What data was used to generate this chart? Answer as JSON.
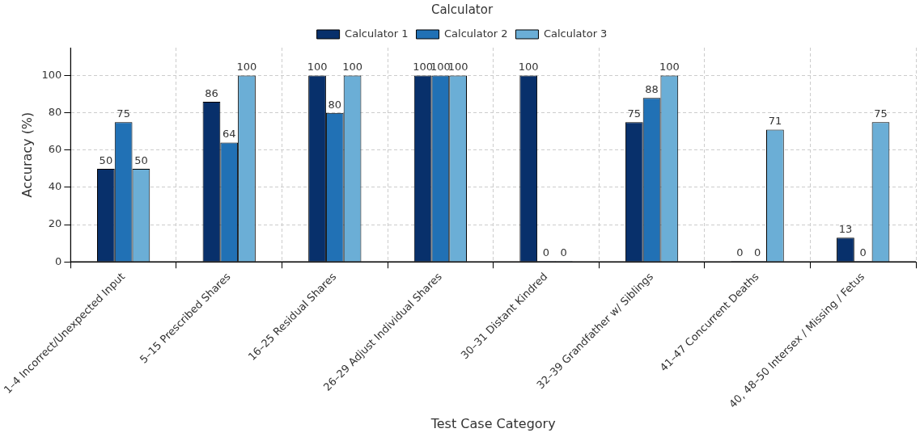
{
  "chart_data": {
    "type": "bar",
    "xlabel": "Test Case Category",
    "ylabel": "Accuracy (%)",
    "legend_title": "Calculator",
    "legend": "top",
    "categories": [
      "1–4 Incorrect/Unexpected Input",
      "5–15 Prescribed Shares",
      "16–25 Residual Shares",
      "26–29 Adjust Individual Shares",
      "30–31 Distant Kindred",
      "32–39 Grandfather w/ Siblings",
      "41–47 Concurrent Deaths",
      "40, 48–50 Intersex / Missing / Fetus"
    ],
    "series": [
      {
        "name": "Calculator 1",
        "color": "#08306b",
        "values": [
          50,
          86,
          100,
          100,
          100,
          75,
          0,
          13
        ]
      },
      {
        "name": "Calculator 2",
        "color": "#2171b5",
        "values": [
          75,
          64,
          80,
          100,
          0,
          88,
          0,
          0
        ]
      },
      {
        "name": "Calculator 3",
        "color": "#6baed6",
        "values": [
          50,
          100,
          100,
          100,
          0,
          100,
          71,
          75
        ]
      }
    ],
    "ylim": [
      0,
      115
    ],
    "yticks": [
      0,
      20,
      40,
      60,
      80,
      100
    ],
    "grid": true,
    "data_labels": true
  }
}
